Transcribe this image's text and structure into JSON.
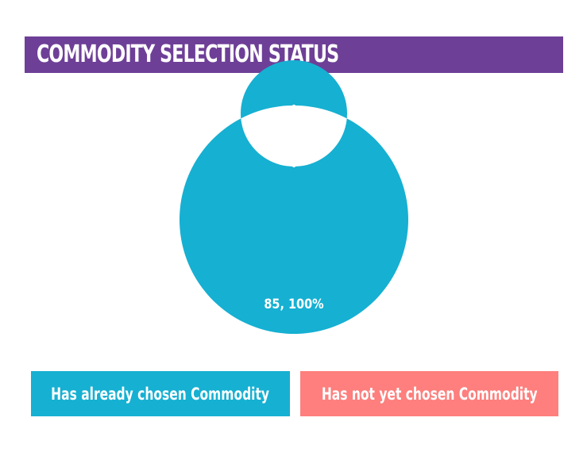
{
  "header": {
    "title": "COMMODITY SELECTION STATUS"
  },
  "colors": {
    "title_bar": "#6e3f97",
    "series_chosen": "#16b0d2",
    "series_not_chosen": "#fe7f7d",
    "text": "#ffffff"
  },
  "chart_data": {
    "type": "pie",
    "variant": "donut",
    "title": "COMMODITY SELECTION STATUS",
    "categories": [
      "Has already chosen Commodity",
      "Has not yet chosen Commodity"
    ],
    "values": [
      85,
      0
    ],
    "data_labels": [
      "85, 100%",
      ""
    ],
    "legend_position": "bottom"
  },
  "legend": {
    "items": [
      {
        "label": "Has already chosen Commodity",
        "color": "#16b0d2"
      },
      {
        "label": "Has not yet chosen Commodity",
        "color": "#fe7f7d"
      }
    ]
  }
}
